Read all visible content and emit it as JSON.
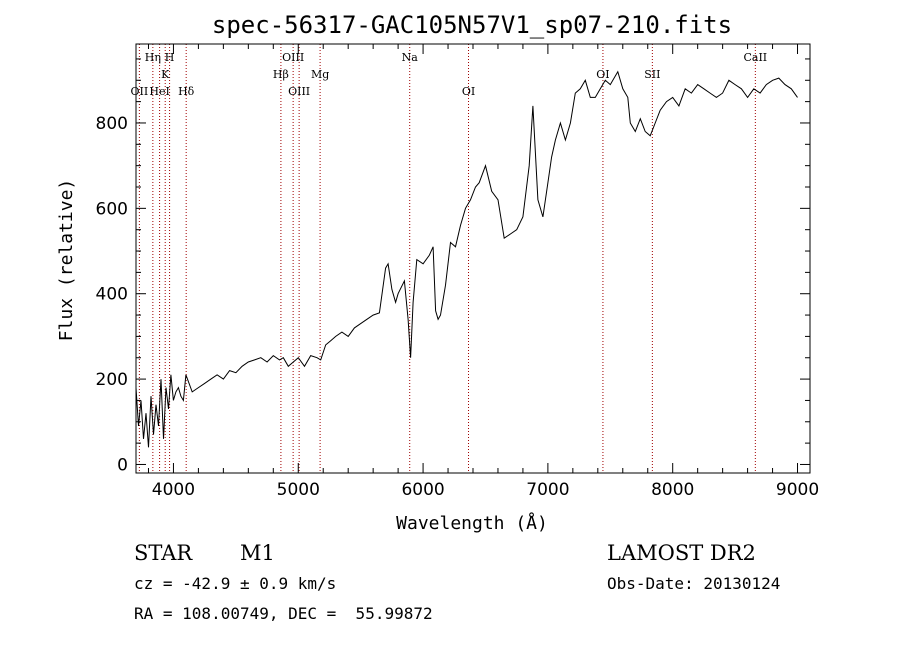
{
  "chart_data": {
    "type": "line",
    "title": "spec-56317-GAC105N57V1_sp07-210.fits",
    "xlabel": "Wavelength (Å)",
    "ylabel": "Flux (relative)",
    "xlim": [
      3700,
      9100
    ],
    "ylim": [
      -20,
      985
    ],
    "x_ticks": [
      4000,
      5000,
      6000,
      7000,
      8000,
      9000
    ],
    "x_tick_labels": [
      "4000",
      "5000",
      "6000",
      "7000",
      "8000",
      "9000"
    ],
    "y_ticks": [
      0,
      200,
      400,
      600,
      800
    ],
    "y_tick_labels": [
      "0",
      "200",
      "400",
      "600",
      "800"
    ],
    "grid": false,
    "line_color": "#000000",
    "marker_color": "#a00000",
    "spectral_lines": [
      {
        "label": "OII",
        "wavelength": 3727,
        "row": "low"
      },
      {
        "label": "Hη",
        "wavelength": 3835,
        "row": "high"
      },
      {
        "label": "HeI",
        "wavelength": 3889,
        "row": "low"
      },
      {
        "label": "K",
        "wavelength": 3934,
        "row": "mid"
      },
      {
        "label": "H",
        "wavelength": 3969,
        "row": "high"
      },
      {
        "label": "Hδ",
        "wavelength": 4102,
        "row": "low"
      },
      {
        "label": "Hβ",
        "wavelength": 4861,
        "row": "mid"
      },
      {
        "label": "OIII",
        "wavelength": 4959,
        "row": "high"
      },
      {
        "label": "OIII",
        "wavelength": 5007,
        "row": "low"
      },
      {
        "label": "Mg",
        "wavelength": 5175,
        "row": "mid"
      },
      {
        "label": "Na",
        "wavelength": 5893,
        "row": "high"
      },
      {
        "label": "OI",
        "wavelength": 6364,
        "row": "low"
      },
      {
        "label": "OI",
        "wavelength": 7441,
        "row": "mid"
      },
      {
        "label": "SII",
        "wavelength": 7837,
        "row": "mid"
      },
      {
        "label": "CaII",
        "wavelength": 8662,
        "row": "high"
      }
    ],
    "series": [
      {
        "x": [
          3700,
          3720,
          3740,
          3760,
          3780,
          3800,
          3820,
          3840,
          3860,
          3880,
          3900,
          3920,
          3940,
          3960,
          3980,
          4000,
          4020,
          4040,
          4060,
          4080,
          4100,
          4150,
          4200,
          4250,
          4300,
          4350,
          4400,
          4450,
          4500,
          4550,
          4600,
          4650,
          4700,
          4750,
          4800,
          4850,
          4880,
          4920,
          4960,
          5000,
          5050,
          5100,
          5150,
          5180,
          5220,
          5260,
          5300,
          5350,
          5400,
          5450,
          5500,
          5550,
          5600,
          5650,
          5700,
          5720,
          5750,
          5780,
          5800,
          5850,
          5880,
          5900,
          5920,
          5950,
          6000,
          6050,
          6080,
          6100,
          6120,
          6140,
          6180,
          6220,
          6260,
          6300,
          6340,
          6380,
          6420,
          6450,
          6500,
          6550,
          6600,
          6650,
          6700,
          6750,
          6800,
          6850,
          6880,
          6920,
          6960,
          7000,
          7030,
          7060,
          7100,
          7140,
          7180,
          7220,
          7260,
          7300,
          7340,
          7380,
          7420,
          7460,
          7500,
          7540,
          7560,
          7600,
          7640,
          7660,
          7700,
          7740,
          7780,
          7820,
          7860,
          7900,
          7950,
          8000,
          8050,
          8100,
          8150,
          8200,
          8250,
          8300,
          8350,
          8400,
          8450,
          8500,
          8550,
          8600,
          8650,
          8700,
          8750,
          8800,
          8850,
          8900,
          8950,
          9000
        ],
        "y": [
          180,
          90,
          150,
          60,
          120,
          40,
          160,
          70,
          140,
          90,
          200,
          60,
          180,
          130,
          210,
          150,
          170,
          180,
          160,
          150,
          210,
          170,
          180,
          190,
          200,
          210,
          200,
          220,
          215,
          230,
          240,
          245,
          250,
          240,
          255,
          245,
          250,
          230,
          240,
          250,
          230,
          255,
          250,
          245,
          280,
          290,
          300,
          310,
          300,
          320,
          330,
          340,
          350,
          355,
          460,
          470,
          410,
          380,
          400,
          430,
          340,
          250,
          380,
          480,
          470,
          490,
          510,
          360,
          340,
          350,
          420,
          520,
          510,
          560,
          600,
          620,
          650,
          660,
          700,
          640,
          620,
          530,
          540,
          550,
          580,
          700,
          840,
          620,
          580,
          660,
          720,
          760,
          800,
          760,
          800,
          870,
          880,
          900,
          860,
          860,
          880,
          900,
          890,
          910,
          920,
          880,
          860,
          800,
          780,
          810,
          780,
          770,
          800,
          830,
          850,
          860,
          840,
          880,
          870,
          890,
          880,
          870,
          860,
          870,
          900,
          890,
          880,
          860,
          880,
          870,
          890,
          900,
          905,
          890,
          880,
          860
        ]
      }
    ]
  },
  "info": {
    "object_class": "STAR",
    "subclass": "M1",
    "survey": "LAMOST DR2",
    "redshift_line": "cz = -42.9 ± 0.9 km/s",
    "obs_date": "Obs-Date: 20130124",
    "coords": "RA = 108.00749, DEC =  55.99872"
  }
}
